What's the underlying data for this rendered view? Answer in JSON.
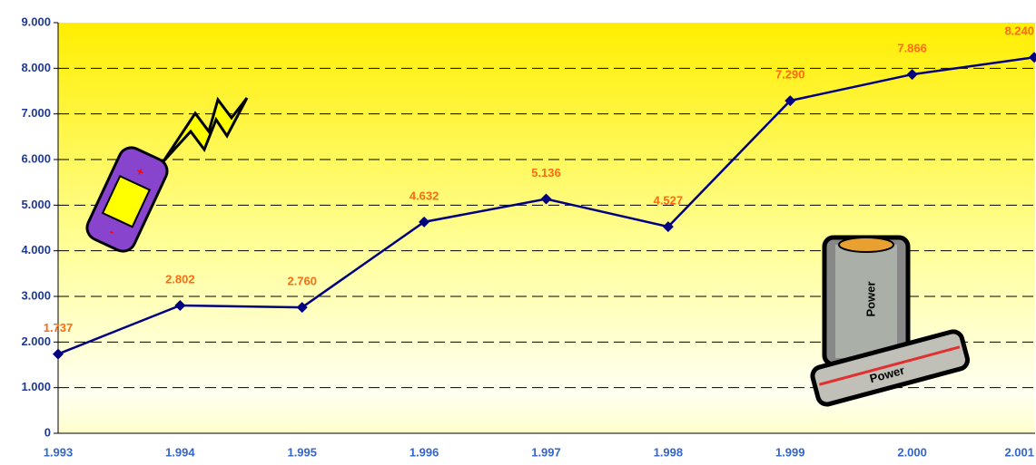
{
  "chart_data": {
    "type": "line",
    "categories": [
      "1.993",
      "1.994",
      "1.995",
      "1.996",
      "1.997",
      "1.998",
      "1.999",
      "2.000",
      "2.001"
    ],
    "values": [
      1737,
      2802,
      2760,
      4632,
      5136,
      4527,
      7290,
      7866,
      8240
    ],
    "value_labels": [
      "1.737",
      "2.802",
      "2.760",
      "4.632",
      "5.136",
      "4.527",
      "7.290",
      "7.866",
      "8.240"
    ],
    "color": "#000080",
    "ylim": [
      0,
      9000
    ],
    "yticks": [
      0,
      {
        "value": 1000,
        "label": "1.000"
      },
      {
        "value": 2000,
        "label": "2.000"
      },
      {
        "value": 3000,
        "label": "3.000"
      },
      {
        "value": 4000,
        "label": "4.000"
      },
      {
        "value": 5000,
        "label": "5.000"
      },
      {
        "value": 6000,
        "label": "6.000"
      },
      {
        "value": 7000,
        "label": "7.000"
      },
      {
        "value": 8000,
        "label": "8.000"
      },
      {
        "value": 9000,
        "label": "9.000"
      }
    ],
    "grid": true
  },
  "clipart_labels": [
    "Power",
    "Power"
  ]
}
